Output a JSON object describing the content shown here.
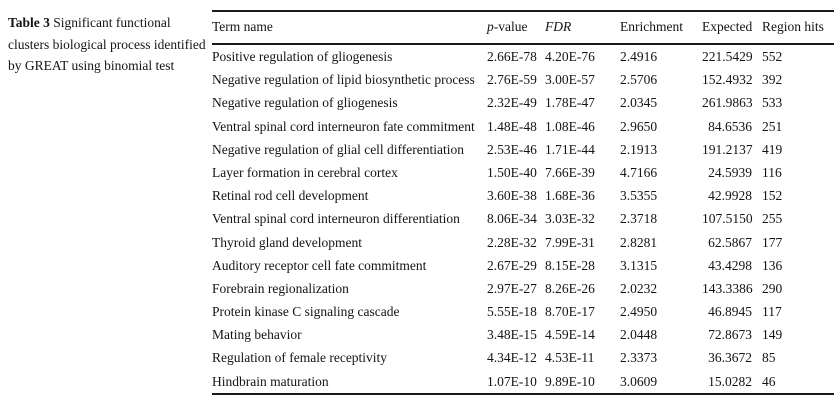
{
  "colors": {
    "background": "#ffffff",
    "text": "#141414",
    "rule": "#1a1a1a"
  },
  "caption": {
    "label": "Table 3",
    "text": "Significant functional clusters biological process identified by GREAT using binomial test"
  },
  "table": {
    "header": {
      "term": "Term name",
      "pvalue_italic": "p",
      "pvalue_rest": "-value",
      "fdr": "FDR",
      "enrichment": "Enrichment",
      "expected": "Expected",
      "region_hits": "Region hits"
    },
    "rows": [
      {
        "term": "Positive regulation of gliogenesis",
        "p_value": "2.66E-78",
        "fdr": "4.20E-76",
        "enrichment": "2.4916",
        "expected": "221.5429",
        "region_hits": "552"
      },
      {
        "term": "Negative regulation of lipid biosynthetic process",
        "p_value": "2.76E-59",
        "fdr": "3.00E-57",
        "enrichment": "2.5706",
        "expected": "152.4932",
        "region_hits": "392"
      },
      {
        "term": "Negative regulation of gliogenesis",
        "p_value": "2.32E-49",
        "fdr": "1.78E-47",
        "enrichment": "2.0345",
        "expected": "261.9863",
        "region_hits": "533"
      },
      {
        "term": "Ventral spinal cord interneuron fate commitment",
        "p_value": "1.48E-48",
        "fdr": "1.08E-46",
        "enrichment": "2.9650",
        "expected": "84.6536",
        "region_hits": "251"
      },
      {
        "term": "Negative regulation of glial cell differentiation",
        "p_value": "2.53E-46",
        "fdr": "1.71E-44",
        "enrichment": "2.1913",
        "expected": "191.2137",
        "region_hits": "419"
      },
      {
        "term": "Layer formation in cerebral cortex",
        "p_value": "1.50E-40",
        "fdr": "7.66E-39",
        "enrichment": "4.7166",
        "expected": "24.5939",
        "region_hits": "116"
      },
      {
        "term": "Retinal rod cell development",
        "p_value": "3.60E-38",
        "fdr": "1.68E-36",
        "enrichment": "3.5355",
        "expected": "42.9928",
        "region_hits": "152"
      },
      {
        "term": "Ventral spinal cord interneuron differentiation",
        "p_value": "8.06E-34",
        "fdr": "3.03E-32",
        "enrichment": "2.3718",
        "expected": "107.5150",
        "region_hits": "255"
      },
      {
        "term": "Thyroid gland development",
        "p_value": "2.28E-32",
        "fdr": "7.99E-31",
        "enrichment": "2.8281",
        "expected": "62.5867",
        "region_hits": "177"
      },
      {
        "term": "Auditory receptor cell fate commitment",
        "p_value": "2.67E-29",
        "fdr": "8.15E-28",
        "enrichment": "3.1315",
        "expected": "43.4298",
        "region_hits": "136"
      },
      {
        "term": "Forebrain regionalization",
        "p_value": "2.97E-27",
        "fdr": "8.26E-26",
        "enrichment": "2.0232",
        "expected": "143.3386",
        "region_hits": "290"
      },
      {
        "term": "Protein kinase C signaling cascade",
        "p_value": "5.55E-18",
        "fdr": "8.70E-17",
        "enrichment": "2.4950",
        "expected": "46.8945",
        "region_hits": "117"
      },
      {
        "term": "Mating behavior",
        "p_value": "3.48E-15",
        "fdr": "4.59E-14",
        "enrichment": "2.0448",
        "expected": "72.8673",
        "region_hits": "149"
      },
      {
        "term": "Regulation of female receptivity",
        "p_value": "4.34E-12",
        "fdr": "4.53E-11",
        "enrichment": "2.3373",
        "expected": "36.3672",
        "region_hits": "85"
      },
      {
        "term": "Hindbrain maturation",
        "p_value": "1.07E-10",
        "fdr": "9.89E-10",
        "enrichment": "3.0609",
        "expected": "15.0282",
        "region_hits": "46"
      }
    ]
  }
}
